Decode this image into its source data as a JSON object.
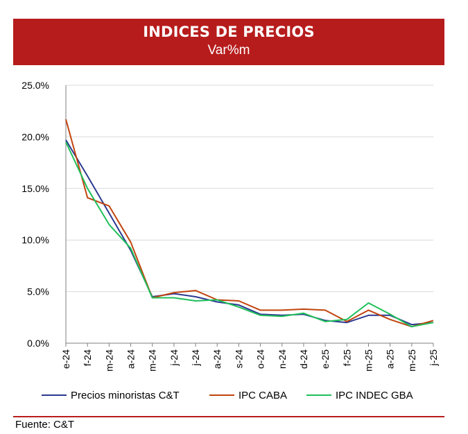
{
  "header": {
    "title": "INDICES DE PRECIOS",
    "subtitle": "Var%m"
  },
  "footer": {
    "source": "Fuente: C&T"
  },
  "colors": {
    "header_bg": "#b71c1c",
    "series": [
      "#2b3990",
      "#c1440e",
      "#1fbf5a"
    ],
    "grid": "#d9d9d9",
    "axis": "#7f7f7f"
  },
  "chart_data": {
    "type": "line",
    "x": [
      "e-24",
      "f-24",
      "m-24",
      "a-24",
      "m-24",
      "j-24",
      "j-24",
      "a-24",
      "s-24",
      "o-24",
      "n-24",
      "d-24",
      "e-25",
      "f-25",
      "m-25",
      "a-25",
      "m-25",
      "j-25"
    ],
    "ylim": [
      0,
      25
    ],
    "yticks": [
      "0.0%",
      "5.0%",
      "10.0%",
      "15.0%",
      "20.0%",
      "25.0%"
    ],
    "grid": true,
    "legend_position": "bottom",
    "series": [
      {
        "name": "Precios minoristas C&T",
        "values": [
          19.7,
          16.2,
          12.6,
          9.0,
          4.5,
          4.8,
          4.5,
          4.0,
          3.7,
          2.8,
          2.7,
          2.8,
          2.2,
          2.0,
          2.7,
          2.7,
          1.8,
          2.0
        ]
      },
      {
        "name": "IPC CABA",
        "values": [
          21.7,
          14.1,
          13.3,
          9.8,
          4.4,
          4.9,
          5.1,
          4.2,
          4.1,
          3.2,
          3.2,
          3.3,
          3.2,
          2.1,
          3.2,
          2.3,
          1.6,
          2.2
        ]
      },
      {
        "name": "IPC INDEC GBA",
        "values": [
          19.5,
          15.0,
          11.5,
          9.2,
          4.4,
          4.4,
          4.1,
          4.2,
          3.5,
          2.7,
          2.6,
          2.9,
          2.1,
          2.3,
          3.9,
          2.8,
          1.6,
          2.0
        ]
      }
    ]
  }
}
